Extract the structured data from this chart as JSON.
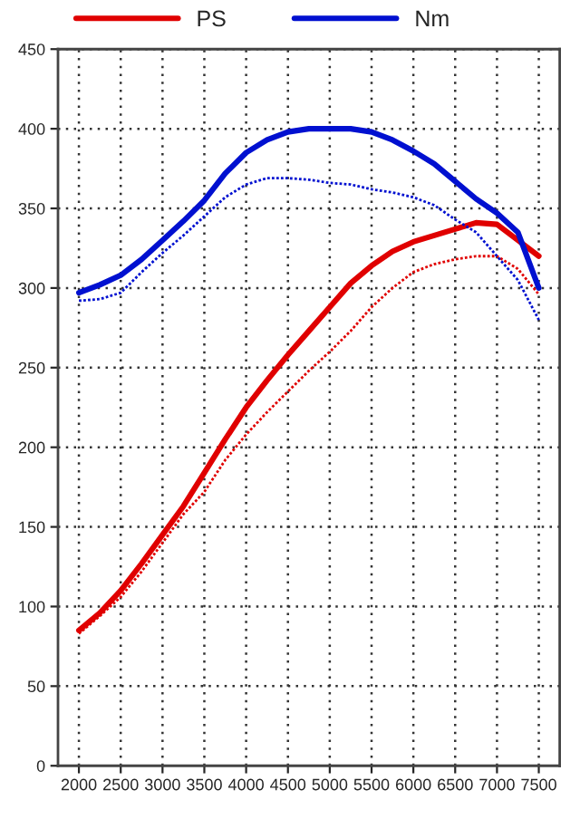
{
  "chart_data": {
    "type": "line",
    "x": [
      2000,
      2250,
      2500,
      2750,
      3000,
      3250,
      3500,
      3750,
      4000,
      4250,
      4500,
      4750,
      5000,
      5250,
      5500,
      5750,
      6000,
      6250,
      6500,
      6750,
      7000,
      7250,
      7500
    ],
    "series": [
      {
        "name": "PS",
        "color": "#e00000",
        "values": [
          85,
          96,
          110,
          127,
          145,
          163,
          184,
          205,
          225,
          242,
          258,
          273,
          288,
          303,
          314,
          323,
          329,
          333,
          337,
          341,
          340,
          330,
          320
        ]
      },
      {
        "name": "Nm",
        "color": "#0010d0",
        "values": [
          297,
          302,
          308,
          318,
          330,
          342,
          355,
          372,
          385,
          393,
          398,
          400,
          400,
          400,
          398,
          393,
          386,
          378,
          367,
          356,
          347,
          335,
          300
        ]
      },
      {
        "color": "#e00000",
        "line_style": "dotted",
        "values": [
          83,
          94,
          106,
          122,
          140,
          158,
          172,
          192,
          208,
          222,
          235,
          248,
          260,
          273,
          288,
          300,
          310,
          315,
          318,
          320,
          320,
          312,
          296
        ]
      },
      {
        "color": "#0010d0",
        "line_style": "dotted",
        "values": [
          292,
          293,
          297,
          310,
          322,
          333,
          345,
          357,
          365,
          369,
          369,
          368,
          366,
          365,
          362,
          360,
          357,
          352,
          343,
          335,
          320,
          305,
          280
        ]
      }
    ],
    "xlim": [
      1750,
      7750
    ],
    "ylim": [
      0,
      450
    ],
    "xticks": [
      2000,
      2500,
      3000,
      3500,
      4000,
      4500,
      5000,
      5500,
      6000,
      6500,
      7000,
      7500
    ],
    "yticks": [
      0,
      50,
      100,
      150,
      200,
      250,
      300,
      350,
      400,
      450
    ],
    "grid": true,
    "legend": "top",
    "line_style": "solid",
    "marker": "none"
  }
}
